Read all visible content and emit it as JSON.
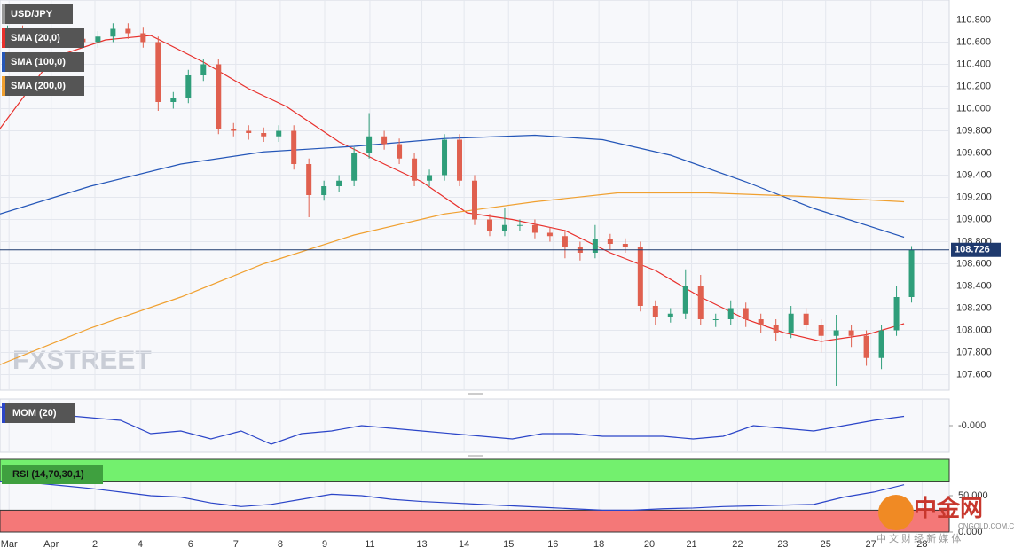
{
  "chart_data": [
    {
      "type": "candlestick",
      "title": "USD/JPY",
      "grid": true,
      "up_color": "#2f9e7a",
      "down_color": "#e0604f",
      "x": [
        1,
        3,
        5,
        7,
        9,
        11,
        13,
        15,
        17,
        19,
        21,
        23,
        25,
        27,
        29,
        31,
        33,
        35,
        37,
        39,
        41,
        43,
        45,
        47,
        49,
        51,
        53,
        55,
        57,
        59,
        61,
        63,
        65,
        67,
        69,
        71,
        73,
        75,
        77,
        79,
        81,
        83,
        85,
        87,
        89,
        91,
        93,
        95,
        97,
        99,
        101,
        103,
        105,
        107,
        109,
        111,
        113,
        115,
        117,
        119,
        121
      ],
      "open": [
        110.65,
        110.7,
        110.65,
        110.62,
        110.6,
        110.63,
        110.6,
        110.65,
        110.72,
        110.68,
        110.6,
        110.06,
        110.1,
        110.3,
        110.4,
        109.82,
        109.8,
        109.78,
        109.75,
        109.8,
        109.5,
        109.22,
        109.3,
        109.35,
        109.6,
        109.75,
        109.68,
        109.55,
        109.35,
        109.4,
        109.72,
        109.35,
        109.0,
        108.9,
        108.95,
        108.95,
        108.88,
        108.85,
        108.75,
        108.7,
        108.82,
        108.78,
        108.75,
        108.22,
        108.12,
        108.15,
        108.4,
        108.1,
        108.1,
        108.2,
        108.1,
        108.05,
        107.98,
        108.15,
        108.05,
        107.95,
        108.0,
        107.95,
        107.75,
        108.0,
        108.3
      ],
      "high": [
        110.75,
        110.75,
        110.7,
        110.67,
        110.68,
        110.68,
        110.7,
        110.77,
        110.77,
        110.73,
        110.65,
        110.15,
        110.35,
        110.45,
        110.45,
        109.87,
        109.85,
        109.83,
        109.85,
        109.85,
        109.55,
        109.35,
        109.4,
        109.65,
        109.96,
        109.8,
        109.73,
        109.6,
        109.45,
        109.77,
        109.77,
        109.4,
        109.05,
        109.1,
        109.0,
        109.0,
        108.93,
        108.9,
        108.8,
        108.95,
        108.87,
        108.83,
        108.8,
        108.27,
        108.2,
        108.55,
        108.5,
        108.15,
        108.27,
        108.25,
        108.15,
        108.1,
        108.22,
        108.2,
        108.1,
        108.14,
        108.05,
        108.0,
        108.05,
        108.4,
        108.76
      ],
      "low": [
        110.6,
        110.6,
        110.57,
        110.55,
        110.55,
        110.55,
        110.55,
        110.6,
        110.63,
        110.55,
        109.98,
        110.0,
        110.05,
        110.25,
        109.77,
        109.75,
        109.72,
        109.7,
        109.7,
        109.45,
        109.02,
        109.17,
        109.25,
        109.3,
        109.55,
        109.63,
        109.5,
        109.3,
        109.3,
        109.35,
        109.3,
        108.95,
        108.85,
        108.85,
        108.9,
        108.83,
        108.8,
        108.65,
        108.63,
        108.65,
        108.73,
        108.7,
        108.17,
        108.05,
        108.07,
        108.1,
        108.05,
        108.03,
        108.05,
        108.03,
        107.98,
        107.9,
        107.93,
        108.0,
        107.8,
        107.5,
        107.85,
        107.68,
        107.65,
        107.95,
        108.25
      ],
      "close": [
        110.7,
        110.65,
        110.62,
        110.6,
        110.63,
        110.6,
        110.65,
        110.72,
        110.68,
        110.6,
        110.06,
        110.1,
        110.3,
        110.4,
        109.82,
        109.8,
        109.78,
        109.75,
        109.8,
        109.5,
        109.22,
        109.3,
        109.35,
        109.6,
        109.75,
        109.68,
        109.55,
        109.35,
        109.4,
        109.72,
        109.35,
        109.0,
        108.9,
        108.95,
        108.95,
        108.88,
        108.85,
        108.75,
        108.7,
        108.82,
        108.78,
        108.75,
        108.22,
        108.12,
        108.15,
        108.4,
        108.1,
        108.1,
        108.2,
        108.1,
        108.05,
        107.98,
        108.15,
        108.05,
        107.95,
        108.0,
        107.95,
        107.75,
        108.0,
        108.3,
        108.726
      ],
      "last_price": 108.726,
      "series": [
        {
          "name": "SMA (20,0)",
          "color": "#e8302c",
          "x": [
            0,
            7,
            14,
            20,
            27,
            33,
            38,
            45,
            51,
            56,
            62,
            68,
            75,
            81,
            87,
            93,
            99,
            104,
            109,
            115,
            120
          ],
          "values": [
            109.82,
            110.46,
            110.62,
            110.66,
            110.42,
            110.18,
            110.02,
            109.7,
            109.5,
            109.34,
            109.06,
            109.0,
            108.9,
            108.7,
            108.54,
            108.3,
            108.1,
            107.98,
            107.9,
            107.96,
            108.06
          ]
        },
        {
          "name": "SMA (100,0)",
          "color": "#2456b8",
          "x": [
            0,
            12,
            24,
            35,
            47,
            59,
            71,
            80,
            89,
            99,
            108,
            120
          ],
          "values": [
            109.05,
            109.3,
            109.5,
            109.61,
            109.66,
            109.73,
            109.76,
            109.72,
            109.58,
            109.34,
            109.1,
            108.84
          ]
        },
        {
          "name": "SMA (200,0)",
          "color": "#f0a030",
          "x": [
            0,
            12,
            24,
            35,
            47,
            59,
            71,
            82,
            94,
            106,
            120
          ],
          "values": [
            107.69,
            108.02,
            108.3,
            108.6,
            108.86,
            109.05,
            109.16,
            109.24,
            109.24,
            109.21,
            109.16
          ]
        }
      ],
      "ylim": [
        107.46,
        110.98
      ],
      "yticks": [
        {
          "value": 107.6,
          "label": "107.600"
        },
        {
          "value": 107.8,
          "label": "107.800"
        },
        {
          "value": 108.0,
          "label": "108.000"
        },
        {
          "value": 108.2,
          "label": "108.200"
        },
        {
          "value": 108.4,
          "label": "108.400"
        },
        {
          "value": 108.6,
          "label": "108.600"
        },
        {
          "value": 108.8,
          "label": "108.800"
        },
        {
          "value": 109.0,
          "label": "109.000"
        },
        {
          "value": 109.2,
          "label": "109.200"
        },
        {
          "value": 109.4,
          "label": "109.400"
        },
        {
          "value": 109.6,
          "label": "109.600"
        },
        {
          "value": 109.8,
          "label": "109.800"
        },
        {
          "value": 110.0,
          "label": "110.000"
        },
        {
          "value": 110.2,
          "label": "110.200"
        },
        {
          "value": 110.4,
          "label": "110.400"
        },
        {
          "value": 110.6,
          "label": "110.600"
        },
        {
          "value": 110.8,
          "label": "110.800"
        }
      ],
      "xlim": [
        0,
        126
      ],
      "xticks": [
        {
          "value": 1.2,
          "label": "Mar"
        },
        {
          "value": 6.8,
          "label": "Apr"
        },
        {
          "value": 12.6,
          "label": "2"
        },
        {
          "value": 18.6,
          "label": "4"
        },
        {
          "value": 25.3,
          "label": "6"
        },
        {
          "value": 31.3,
          "label": "7"
        },
        {
          "value": 37.2,
          "label": "8"
        },
        {
          "value": 43.1,
          "label": "9"
        },
        {
          "value": 49.1,
          "label": "11"
        },
        {
          "value": 56,
          "label": "13"
        },
        {
          "value": 61.6,
          "label": "14"
        },
        {
          "value": 67.5,
          "label": "15"
        },
        {
          "value": 73.4,
          "label": "16"
        },
        {
          "value": 79.5,
          "label": "18"
        },
        {
          "value": 86.2,
          "label": "20"
        },
        {
          "value": 91.8,
          "label": "21"
        },
        {
          "value": 97.9,
          "label": "22"
        },
        {
          "value": 103.9,
          "label": "23"
        },
        {
          "value": 109.6,
          "label": "25"
        },
        {
          "value": 115.6,
          "label": "27"
        },
        {
          "value": 122.4,
          "label": "28"
        }
      ]
    },
    {
      "type": "line",
      "title": "MOM (20)",
      "color": "#2b45c8",
      "x": [
        0,
        4,
        8,
        12,
        16,
        20,
        24,
        28,
        32,
        36,
        40,
        44,
        48,
        52,
        56,
        60,
        64,
        68,
        72,
        76,
        80,
        84,
        88,
        92,
        96,
        100,
        104,
        108,
        112,
        116,
        120
      ],
      "values": [
        0.7,
        0.5,
        0.4,
        0.3,
        0.2,
        -0.3,
        -0.2,
        -0.5,
        -0.2,
        -0.7,
        -0.3,
        -0.2,
        0.0,
        -0.1,
        -0.2,
        -0.3,
        -0.4,
        -0.5,
        -0.3,
        -0.3,
        -0.4,
        -0.4,
        -0.4,
        -0.5,
        -0.4,
        0.0,
        -0.1,
        -0.2,
        0.0,
        0.2,
        0.35
      ],
      "ylim": [
        -1,
        1
      ],
      "yticks": [
        {
          "value": 0,
          "label": "-0.000"
        }
      ]
    },
    {
      "type": "line",
      "title": "RSI (14,70,30,1)",
      "color": "#2b45c8",
      "x": [
        0,
        4,
        8,
        12,
        16,
        20,
        24,
        28,
        32,
        36,
        40,
        44,
        48,
        52,
        56,
        60,
        64,
        68,
        72,
        76,
        80,
        84,
        88,
        92,
        96,
        100,
        104,
        108,
        112,
        116,
        120
      ],
      "values": [
        70,
        68,
        64,
        60,
        55,
        50,
        48,
        40,
        35,
        38,
        45,
        52,
        50,
        45,
        42,
        40,
        38,
        36,
        34,
        32,
        30,
        30,
        32,
        33,
        35,
        36,
        37,
        38,
        48,
        55,
        65
      ],
      "overbought": 70,
      "oversold": 30,
      "overbought_color": "#73f06e",
      "oversold_color": "#f47878",
      "ylim": [
        0,
        100
      ],
      "yticks": [
        {
          "value": 50,
          "label": "50.000"
        },
        {
          "value": 0,
          "label": "0.000"
        }
      ]
    }
  ],
  "watermark": "FXSTREET",
  "logo": {
    "name": "中金网",
    "site": "CNGOLD.COM.CN",
    "tagline": "中 文 财 经 新 媒 体"
  }
}
